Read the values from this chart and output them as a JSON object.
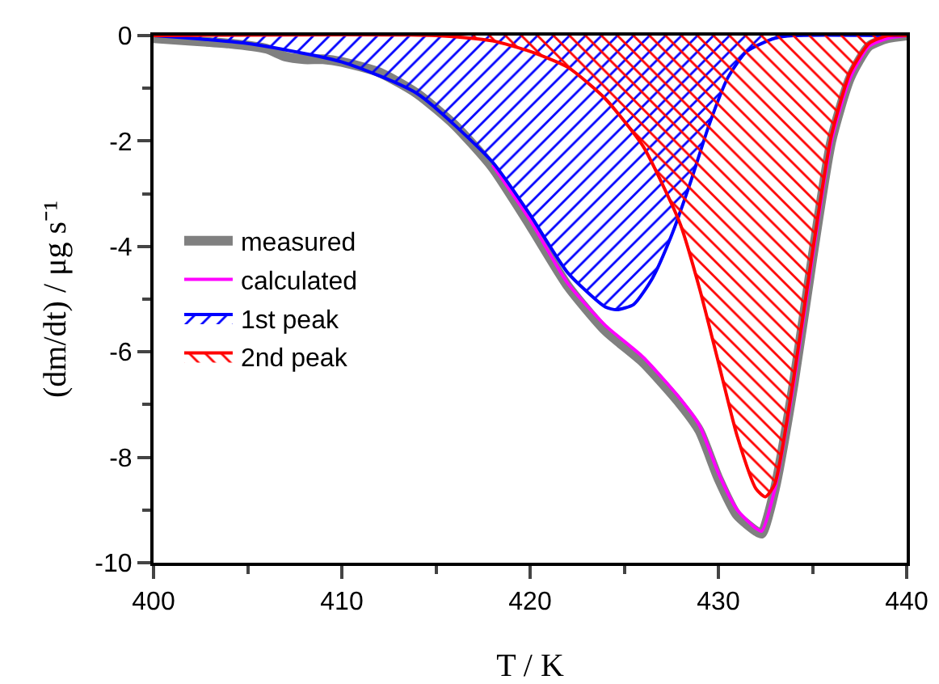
{
  "chart_data": {
    "type": "line",
    "xlabel": "T / K",
    "ylabel": "(dm/dt) / μg s⁻¹",
    "xlim": [
      400,
      440
    ],
    "ylim": [
      -10,
      0
    ],
    "xticks": [
      400,
      410,
      420,
      430,
      440
    ],
    "yticks": [
      -10,
      -8,
      -6,
      -4,
      -2,
      0
    ],
    "grid": false,
    "legend": "left",
    "marker": "none",
    "series": [
      {
        "name": "measured",
        "color": "#808080",
        "x": [
          400,
          402,
          404,
          406,
          407,
          408,
          409,
          410,
          412,
          414,
          416,
          418,
          420,
          422,
          424,
          426,
          428,
          429,
          430,
          431,
          432,
          432.3,
          433,
          434,
          435,
          436,
          437,
          438,
          439,
          440
        ],
        "values": [
          -0.05,
          -0.1,
          -0.15,
          -0.25,
          -0.4,
          -0.45,
          -0.45,
          -0.5,
          -0.7,
          -1.1,
          -1.7,
          -2.5,
          -3.6,
          -4.75,
          -5.6,
          -6.2,
          -7.0,
          -7.5,
          -8.4,
          -9.1,
          -9.4,
          -9.45,
          -8.6,
          -6.6,
          -4.2,
          -2.0,
          -0.8,
          -0.2,
          -0.05,
          0
        ]
      },
      {
        "name": "calculated",
        "color": "#ff00ff",
        "x": [
          418,
          420,
          422,
          424,
          426,
          428,
          429,
          430,
          431,
          432,
          432.3,
          433,
          434,
          435,
          436,
          437,
          438,
          439,
          440
        ],
        "values": [
          -2.45,
          -3.5,
          -4.7,
          -5.5,
          -6.1,
          -6.9,
          -7.4,
          -8.3,
          -9.0,
          -9.35,
          -9.4,
          -8.6,
          -6.6,
          -4.2,
          -2.0,
          -0.8,
          -0.2,
          -0.05,
          0
        ]
      },
      {
        "name": "1st peak",
        "color": "#0000ff",
        "type": "area",
        "x": [
          400,
          405,
          410,
          414,
          418,
          420,
          422,
          424,
          424.6,
          425.5,
          426.5,
          427.5,
          428.5,
          429.5,
          430.5,
          431.5,
          433,
          434,
          440
        ],
        "values": [
          0,
          -0.15,
          -0.5,
          -1.1,
          -2.4,
          -3.4,
          -4.5,
          -5.15,
          -5.2,
          -5.1,
          -4.6,
          -3.8,
          -2.8,
          -1.7,
          -0.8,
          -0.3,
          -0.05,
          0,
          0
        ]
      },
      {
        "name": "2nd peak",
        "color": "#ff0000",
        "type": "area",
        "x": [
          400,
          415,
          418,
          420,
          422,
          424,
          426,
          427,
          428,
          429,
          430,
          431,
          432,
          432.5,
          433,
          434,
          435,
          436,
          437,
          438,
          439,
          440
        ],
        "values": [
          0,
          0,
          -0.1,
          -0.3,
          -0.6,
          -1.2,
          -2.1,
          -2.8,
          -3.6,
          -4.8,
          -6.2,
          -7.6,
          -8.6,
          -8.75,
          -8.5,
          -6.5,
          -4.1,
          -1.9,
          -0.7,
          -0.15,
          0,
          0
        ]
      }
    ]
  }
}
